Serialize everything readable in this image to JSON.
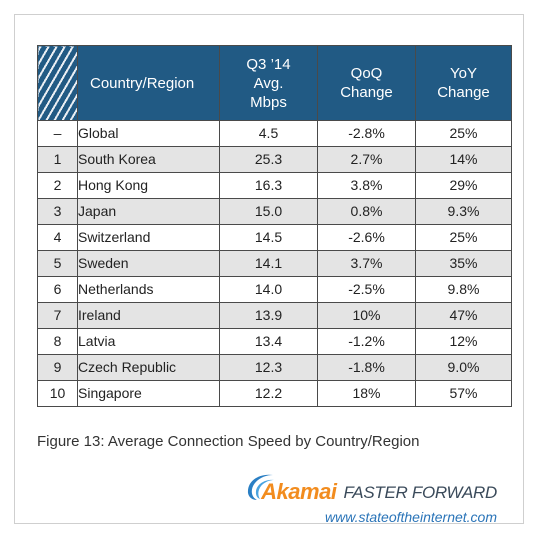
{
  "table": {
    "headers": {
      "rank": "",
      "country": "Country/Region",
      "speed": [
        "Q3 ’14",
        "Avg.",
        "Mbps"
      ],
      "qoq": [
        "QoQ",
        "Change"
      ],
      "yoy": [
        "YoY",
        "Change"
      ]
    },
    "rows": [
      {
        "rank": "–",
        "country": "Global",
        "speed": "4.5",
        "qoq": "-2.8%",
        "yoy": "25%"
      },
      {
        "rank": "1",
        "country": "South Korea",
        "speed": "25.3",
        "qoq": "2.7%",
        "yoy": "14%"
      },
      {
        "rank": "2",
        "country": "Hong Kong",
        "speed": "16.3",
        "qoq": "3.8%",
        "yoy": "29%"
      },
      {
        "rank": "3",
        "country": "Japan",
        "speed": "15.0",
        "qoq": "0.8%",
        "yoy": "9.3%"
      },
      {
        "rank": "4",
        "country": "Switzerland",
        "speed": "14.5",
        "qoq": "-2.6%",
        "yoy": "25%"
      },
      {
        "rank": "5",
        "country": "Sweden",
        "speed": "14.1",
        "qoq": "3.7%",
        "yoy": "35%"
      },
      {
        "rank": "6",
        "country": "Netherlands",
        "speed": "14.0",
        "qoq": "-2.5%",
        "yoy": "9.8%"
      },
      {
        "rank": "7",
        "country": "Ireland",
        "speed": "13.9",
        "qoq": "10%",
        "yoy": "47%"
      },
      {
        "rank": "8",
        "country": "Latvia",
        "speed": "13.4",
        "qoq": "-1.2%",
        "yoy": "12%"
      },
      {
        "rank": "9",
        "country": "Czech Republic",
        "speed": "12.3",
        "qoq": "-1.8%",
        "yoy": "9.0%"
      },
      {
        "rank": "10",
        "country": "Singapore",
        "speed": "12.2",
        "qoq": "18%",
        "yoy": "57%"
      }
    ]
  },
  "caption": "Figure 13: Average Connection Speed by Country/Region",
  "branding": {
    "logo": "Akamai",
    "tagline": "FASTER FORWARD",
    "url": "www.stateoftheinternet.com",
    "logo_icon": "akamai-swoosh-icon"
  },
  "colors": {
    "header_bg": "#215a84",
    "header_text": "#ffffff",
    "alt_row": "#e4e4e4",
    "brand_orange": "#f28c1e",
    "brand_blue": "#2a74b8"
  }
}
